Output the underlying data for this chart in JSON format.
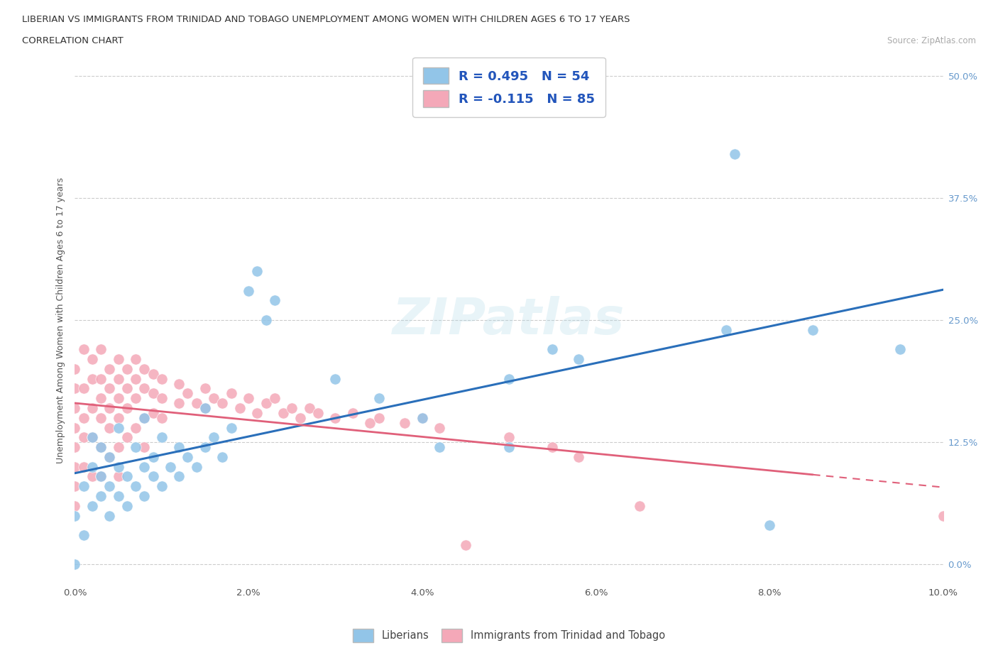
{
  "title_line1": "LIBERIAN VS IMMIGRANTS FROM TRINIDAD AND TOBAGO UNEMPLOYMENT AMONG WOMEN WITH CHILDREN AGES 6 TO 17 YEARS",
  "title_line2": "CORRELATION CHART",
  "source": "Source: ZipAtlas.com",
  "ylabel_label": "Unemployment Among Women with Children Ages 6 to 17 years",
  "xmin": 0.0,
  "xmax": 0.1,
  "ymin": -0.02,
  "ymax": 0.52,
  "liberian_color": "#92c5e8",
  "trinidad_color": "#f4a8b8",
  "liberian_R": 0.495,
  "liberian_N": 54,
  "trinidad_R": -0.115,
  "trinidad_N": 85,
  "trendline_liberian_color": "#2a6fba",
  "trendline_trinidad_color": "#e0607a",
  "legend_liberian": "Liberians",
  "legend_trinidad": "Immigrants from Trinidad and Tobago",
  "liberian_scatter": [
    [
      0.0,
      0.0
    ],
    [
      0.0,
      0.05
    ],
    [
      0.001,
      0.03
    ],
    [
      0.001,
      0.08
    ],
    [
      0.002,
      0.06
    ],
    [
      0.002,
      0.1
    ],
    [
      0.002,
      0.13
    ],
    [
      0.003,
      0.07
    ],
    [
      0.003,
      0.09
    ],
    [
      0.003,
      0.12
    ],
    [
      0.004,
      0.05
    ],
    [
      0.004,
      0.08
    ],
    [
      0.004,
      0.11
    ],
    [
      0.005,
      0.07
    ],
    [
      0.005,
      0.1
    ],
    [
      0.005,
      0.14
    ],
    [
      0.006,
      0.06
    ],
    [
      0.006,
      0.09
    ],
    [
      0.007,
      0.08
    ],
    [
      0.007,
      0.12
    ],
    [
      0.008,
      0.07
    ],
    [
      0.008,
      0.1
    ],
    [
      0.008,
      0.15
    ],
    [
      0.009,
      0.09
    ],
    [
      0.009,
      0.11
    ],
    [
      0.01,
      0.08
    ],
    [
      0.01,
      0.13
    ],
    [
      0.011,
      0.1
    ],
    [
      0.012,
      0.09
    ],
    [
      0.012,
      0.12
    ],
    [
      0.013,
      0.11
    ],
    [
      0.014,
      0.1
    ],
    [
      0.015,
      0.12
    ],
    [
      0.015,
      0.16
    ],
    [
      0.016,
      0.13
    ],
    [
      0.017,
      0.11
    ],
    [
      0.018,
      0.14
    ],
    [
      0.02,
      0.28
    ],
    [
      0.021,
      0.3
    ],
    [
      0.022,
      0.25
    ],
    [
      0.023,
      0.27
    ],
    [
      0.03,
      0.19
    ],
    [
      0.035,
      0.17
    ],
    [
      0.04,
      0.15
    ],
    [
      0.042,
      0.12
    ],
    [
      0.05,
      0.12
    ],
    [
      0.05,
      0.19
    ],
    [
      0.055,
      0.22
    ],
    [
      0.058,
      0.21
    ],
    [
      0.075,
      0.24
    ],
    [
      0.076,
      0.42
    ],
    [
      0.08,
      0.04
    ],
    [
      0.085,
      0.24
    ],
    [
      0.095,
      0.22
    ]
  ],
  "trinidad_scatter": [
    [
      0.0,
      0.2
    ],
    [
      0.0,
      0.18
    ],
    [
      0.0,
      0.16
    ],
    [
      0.0,
      0.14
    ],
    [
      0.0,
      0.12
    ],
    [
      0.0,
      0.1
    ],
    [
      0.0,
      0.08
    ],
    [
      0.0,
      0.06
    ],
    [
      0.001,
      0.22
    ],
    [
      0.001,
      0.18
    ],
    [
      0.001,
      0.15
    ],
    [
      0.001,
      0.13
    ],
    [
      0.001,
      0.1
    ],
    [
      0.002,
      0.21
    ],
    [
      0.002,
      0.19
    ],
    [
      0.002,
      0.16
    ],
    [
      0.002,
      0.13
    ],
    [
      0.002,
      0.09
    ],
    [
      0.003,
      0.22
    ],
    [
      0.003,
      0.19
    ],
    [
      0.003,
      0.17
    ],
    [
      0.003,
      0.15
    ],
    [
      0.003,
      0.12
    ],
    [
      0.003,
      0.09
    ],
    [
      0.004,
      0.2
    ],
    [
      0.004,
      0.18
    ],
    [
      0.004,
      0.16
    ],
    [
      0.004,
      0.14
    ],
    [
      0.004,
      0.11
    ],
    [
      0.005,
      0.21
    ],
    [
      0.005,
      0.19
    ],
    [
      0.005,
      0.17
    ],
    [
      0.005,
      0.15
    ],
    [
      0.005,
      0.12
    ],
    [
      0.005,
      0.09
    ],
    [
      0.006,
      0.2
    ],
    [
      0.006,
      0.18
    ],
    [
      0.006,
      0.16
    ],
    [
      0.006,
      0.13
    ],
    [
      0.007,
      0.21
    ],
    [
      0.007,
      0.19
    ],
    [
      0.007,
      0.17
    ],
    [
      0.007,
      0.14
    ],
    [
      0.008,
      0.2
    ],
    [
      0.008,
      0.18
    ],
    [
      0.008,
      0.15
    ],
    [
      0.008,
      0.12
    ],
    [
      0.009,
      0.195
    ],
    [
      0.009,
      0.175
    ],
    [
      0.009,
      0.155
    ],
    [
      0.01,
      0.19
    ],
    [
      0.01,
      0.17
    ],
    [
      0.01,
      0.15
    ],
    [
      0.012,
      0.185
    ],
    [
      0.012,
      0.165
    ],
    [
      0.013,
      0.175
    ],
    [
      0.014,
      0.165
    ],
    [
      0.015,
      0.18
    ],
    [
      0.015,
      0.16
    ],
    [
      0.016,
      0.17
    ],
    [
      0.017,
      0.165
    ],
    [
      0.018,
      0.175
    ],
    [
      0.019,
      0.16
    ],
    [
      0.02,
      0.17
    ],
    [
      0.021,
      0.155
    ],
    [
      0.022,
      0.165
    ],
    [
      0.023,
      0.17
    ],
    [
      0.024,
      0.155
    ],
    [
      0.025,
      0.16
    ],
    [
      0.026,
      0.15
    ],
    [
      0.027,
      0.16
    ],
    [
      0.028,
      0.155
    ],
    [
      0.03,
      0.15
    ],
    [
      0.032,
      0.155
    ],
    [
      0.034,
      0.145
    ],
    [
      0.035,
      0.15
    ],
    [
      0.038,
      0.145
    ],
    [
      0.04,
      0.15
    ],
    [
      0.042,
      0.14
    ],
    [
      0.045,
      0.02
    ],
    [
      0.05,
      0.13
    ],
    [
      0.055,
      0.12
    ],
    [
      0.058,
      0.11
    ],
    [
      0.065,
      0.06
    ],
    [
      0.1,
      0.05
    ]
  ]
}
